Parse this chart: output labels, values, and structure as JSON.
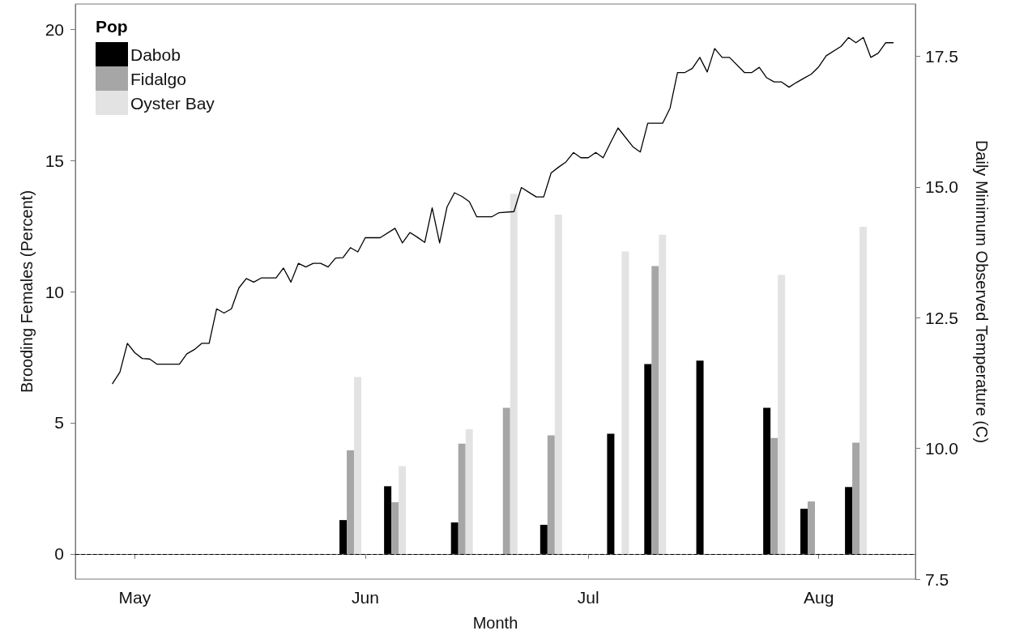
{
  "chart_data": {
    "type": "bar",
    "xlabel": "Month",
    "ylabel": "Brooding Females (Percent)",
    "y2label": "Daily Minimum Observed Temperature (C)",
    "legend_title": "Pop",
    "legend": "top left",
    "x": [
      "--05-30",
      "--06-05",
      "--06-14",
      "--06-20",
      "--06-26",
      "--07-05",
      "--07-10",
      "--07-17",
      "--07-26",
      "--07-31",
      "--08-06"
    ],
    "series": [
      {
        "name": "Dabob",
        "color": "#000000",
        "values": [
          1.29,
          2.58,
          1.2,
          0,
          1.11,
          4.58,
          7.24,
          7.37,
          5.57,
          1.72,
          2.55
        ]
      },
      {
        "name": "Fidalgo",
        "color": "#a6a6a6",
        "values": [
          3.95,
          1.97,
          4.2,
          5.57,
          4.52,
          0,
          10.97,
          0,
          4.42,
          2.0,
          4.24
        ]
      },
      {
        "name": "Oyster Bay",
        "color": "#e3e3e3",
        "values": [
          6.74,
          3.35,
          4.75,
          13.73,
          12.93,
          11.53,
          12.17,
          0,
          10.63,
          0,
          12.47
        ]
      },
      {
        "type": "line",
        "axis": "y2",
        "color": "#000000",
        "x": [
          "--04-28",
          "--04-29",
          "--04-30",
          "--05-01",
          "--05-02",
          "--05-03",
          "--05-04",
          "--05-05",
          "--05-07",
          "--05-08",
          "--05-09",
          "--05-10",
          "--05-11",
          "--05-12",
          "--05-13",
          "--05-14",
          "--05-15",
          "--05-16",
          "--05-17",
          "--05-18",
          "--05-20",
          "--05-21",
          "--05-22",
          "--05-23",
          "--05-24",
          "--05-25",
          "--05-26",
          "--05-27",
          "--05-28",
          "--05-29",
          "--05-30",
          "--05-31",
          "--06-01",
          "--06-02",
          "--06-03",
          "--06-05",
          "--06-06",
          "--06-07",
          "--06-08",
          "--06-09",
          "--06-10",
          "--06-11",
          "--06-12",
          "--06-13",
          "--06-14",
          "--06-15",
          "--06-16",
          "--06-17",
          "--06-18",
          "--06-19",
          "--06-21",
          "--06-22",
          "--06-23",
          "--06-24",
          "--06-25",
          "--06-26",
          "--06-27",
          "--06-28",
          "--06-29",
          "--06-30",
          "--07-01",
          "--07-02",
          "--07-03",
          "--07-04",
          "--07-05",
          "--07-07",
          "--07-08",
          "--07-09",
          "--07-10",
          "--07-11",
          "--07-12",
          "--07-13",
          "--07-14",
          "--07-15",
          "--07-16",
          "--07-17",
          "--07-18",
          "--07-19",
          "--07-20",
          "--07-22",
          "--07-23",
          "--07-24",
          "--07-25",
          "--07-26",
          "--07-27",
          "--07-28",
          "--07-29",
          "--07-30",
          "--07-31",
          "--08-01",
          "--08-02",
          "--08-04",
          "--08-05",
          "--08-06",
          "--08-07",
          "--08-08",
          "--08-09",
          "--08-10",
          "--08-11"
        ],
        "values": [
          11.24,
          11.46,
          12.01,
          11.83,
          11.72,
          11.71,
          11.61,
          11.61,
          11.61,
          11.81,
          11.89,
          12.01,
          12.01,
          12.67,
          12.59,
          12.67,
          13.07,
          13.25,
          13.18,
          13.26,
          13.26,
          13.45,
          13.18,
          13.54,
          13.47,
          13.54,
          13.54,
          13.47,
          13.64,
          13.65,
          13.84,
          13.76,
          14.03,
          14.03,
          14.03,
          14.21,
          13.93,
          14.13,
          14.04,
          13.94,
          14.6,
          13.93,
          14.62,
          14.89,
          14.82,
          14.72,
          14.43,
          14.43,
          14.43,
          14.51,
          14.53,
          14.99,
          14.9,
          14.81,
          14.81,
          15.27,
          15.38,
          15.48,
          15.66,
          15.56,
          15.56,
          15.66,
          15.56,
          15.85,
          16.13,
          15.77,
          15.67,
          16.22,
          16.22,
          16.22,
          16.51,
          17.19,
          17.19,
          17.27,
          17.48,
          17.2,
          17.65,
          17.48,
          17.48,
          17.19,
          17.19,
          17.29,
          17.09,
          17.01,
          17.01,
          16.91,
          17.0,
          17.08,
          17.16,
          17.3,
          17.51,
          17.69,
          17.86,
          17.76,
          17.86,
          17.48,
          17.56,
          17.76,
          17.76
        ]
      }
    ],
    "xlim": [
      "--04-23",
      "--08-14"
    ],
    "xticks": [
      {
        "value": "--05-01",
        "label": "May"
      },
      {
        "value": "--06-01",
        "label": "Jun"
      },
      {
        "value": "--07-01",
        "label": "Jul"
      },
      {
        "value": "--08-01",
        "label": "Aug"
      }
    ],
    "ylim": [
      -0.96,
      20.96
    ],
    "yticks": [
      0,
      5,
      10,
      15,
      20
    ],
    "y2lim": [
      7.5,
      18.5
    ],
    "y2ticks": [
      7.5,
      {
        "value": 10,
        "label": "10.0"
      },
      12.5,
      {
        "value": 15,
        "label": "15.0"
      },
      17.5
    ],
    "ref_lines": [
      {
        "axis": "y",
        "value": 0,
        "color": "#000000",
        "line_style": "dashed"
      }
    ],
    "grid": false
  }
}
